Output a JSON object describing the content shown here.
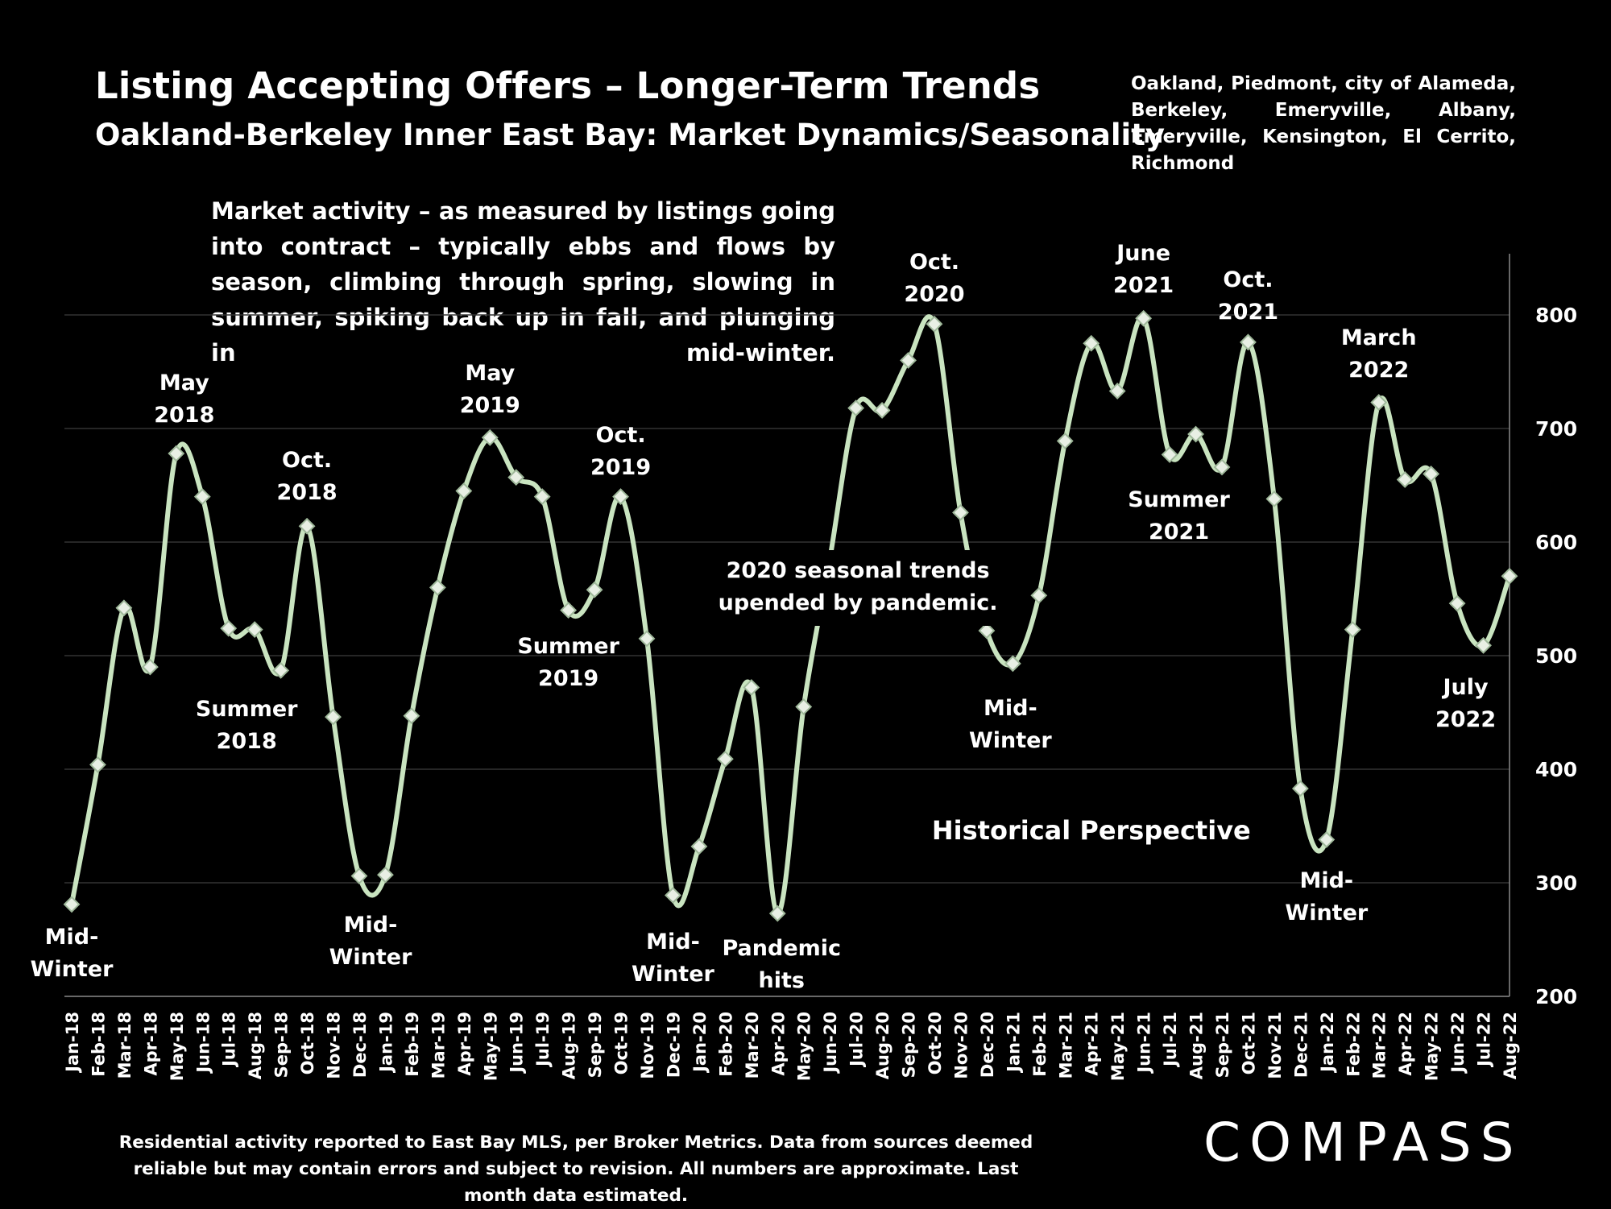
{
  "header": {
    "title": "Listing Accepting Offers – Longer-Term Trends",
    "subtitle": "Oakland-Berkeley Inner East Bay: Market Dynamics/Seasonality",
    "regions": "Oakland, Piedmont, city of Alameda, Berkeley, Emeryville, Albany, Emeryville, Kensington, El Cerrito, Richmond"
  },
  "intro_text": "Market activity – as measured by listings going into contract – typically ebbs and flows by season, climbing through spring, slowing in summer, spiking back up in fall, and plunging in mid-winter.",
  "footnote": "Residential activity reported to East Bay MLS, per Broker Metrics. Data from sources deemed reliable but may contain errors and subject to revision. All numbers are approximate. Last month data estimated.",
  "logo_text": "COMPASS",
  "colors": {
    "background": "#000000",
    "line": "#c9e4c0",
    "marker": "#c9e4c0",
    "text": "#ffffff",
    "grid": "#333333"
  },
  "chart_data": {
    "type": "line",
    "x": [
      "Jan-18",
      "Feb-18",
      "Mar-18",
      "Apr-18",
      "May-18",
      "Jun-18",
      "Jul-18",
      "Aug-18",
      "Sep-18",
      "Oct-18",
      "Nov-18",
      "Dec-18",
      "Jan-19",
      "Feb-19",
      "Mar-19",
      "Apr-19",
      "May-19",
      "Jun-19",
      "Jul-19",
      "Aug-19",
      "Sep-19",
      "Oct-19",
      "Nov-19",
      "Dec-19",
      "Jan-20",
      "Feb-20",
      "Mar-20",
      "Apr-20",
      "May-20",
      "Jun-20",
      "Jul-20",
      "Aug-20",
      "Sep-20",
      "Oct-20",
      "Nov-20",
      "Dec-20",
      "Jan-21",
      "Feb-21",
      "Mar-21",
      "Apr-21",
      "May-21",
      "Jun-21",
      "Jul-21",
      "Aug-21",
      "Sep-21",
      "Oct-21",
      "Nov-21",
      "Dec-21",
      "Jan-22",
      "Feb-22",
      "Mar-22",
      "Apr-22",
      "May-22",
      "Jun-22",
      "Jul-22",
      "Aug-22"
    ],
    "values": [
      281,
      404,
      542,
      490,
      678,
      640,
      524,
      523,
      487,
      614,
      446,
      306,
      307,
      447,
      560,
      645,
      692,
      657,
      640,
      540,
      558,
      640,
      515,
      289,
      332,
      409,
      472,
      273,
      455,
      585,
      718,
      716,
      760,
      792,
      626,
      522,
      493,
      553,
      689,
      775,
      733,
      797,
      677,
      695,
      666,
      776,
      638,
      383,
      338,
      523,
      723,
      655,
      660,
      546,
      509,
      570
    ],
    "ylim": [
      200,
      850
    ],
    "yticks": [
      200,
      300,
      400,
      500,
      600,
      700,
      800
    ],
    "xlabel": "",
    "ylabel": "",
    "grid": true,
    "legend": "none",
    "annotations": [
      {
        "x": "Jan-18",
        "lines": [
          "Mid-",
          "Winter"
        ]
      },
      {
        "x": "May-18",
        "lines": [
          "May",
          "2018"
        ]
      },
      {
        "x": "Aug-18",
        "lines": [
          "Summer",
          "2018"
        ]
      },
      {
        "x": "Oct-18",
        "lines": [
          "Oct.",
          "2018"
        ]
      },
      {
        "x": "Dec-18",
        "lines": [
          "Mid-",
          "Winter"
        ]
      },
      {
        "x": "May-19",
        "lines": [
          "May",
          "2019"
        ]
      },
      {
        "x": "Aug-19",
        "lines": [
          "Summer",
          "2019"
        ]
      },
      {
        "x": "Oct-19",
        "lines": [
          "Oct.",
          "2019"
        ]
      },
      {
        "x": "Dec-19",
        "lines": [
          "Mid-",
          "Winter"
        ]
      },
      {
        "x": "Apr-20",
        "lines": [
          "Pandemic",
          "hits"
        ]
      },
      {
        "x": "Aug-20",
        "lines": [
          "2020 seasonal trends",
          "upended by pandemic."
        ]
      },
      {
        "x": "Oct-20",
        "lines": [
          "Oct.",
          "2020"
        ]
      },
      {
        "x": "Jan-21",
        "lines": [
          "Mid-",
          "Winter"
        ]
      },
      {
        "x": "Jun-21",
        "lines": [
          "June",
          "2021"
        ]
      },
      {
        "x": "Aug-21",
        "lines": [
          "Summer",
          "2021"
        ]
      },
      {
        "x": "Oct-21",
        "lines": [
          "Oct.",
          "2021"
        ]
      },
      {
        "x": "Jan-22",
        "lines": [
          "Mid-",
          "Winter"
        ]
      },
      {
        "x": "Mar-22",
        "lines": [
          "March",
          "2022"
        ]
      },
      {
        "x": "Jul-22",
        "lines": [
          "July",
          "2022"
        ]
      },
      {
        "x": "Feb-21",
        "lines": [
          "Historical Perspective"
        ]
      }
    ]
  }
}
